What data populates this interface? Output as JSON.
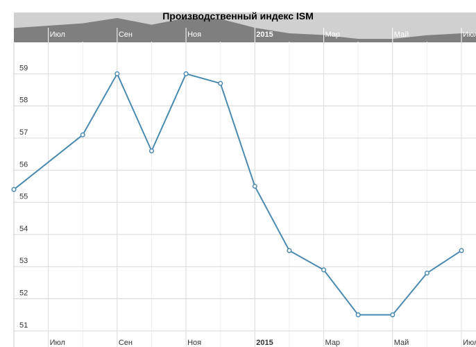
{
  "chart_data": {
    "type": "line",
    "title": "Производственный индекс ISM",
    "x": [
      "2014-06",
      "2014-08",
      "2014-09",
      "2014-10",
      "2014-11",
      "2014-12",
      "2015-01",
      "2015-02",
      "2015-03",
      "2015-04",
      "2015-05",
      "2015-06",
      "2015-07"
    ],
    "series": [
      {
        "color": "#4a8ab0",
        "values": [
          55.4,
          57.1,
          59.0,
          56.6,
          59.0,
          58.7,
          55.5,
          53.5,
          52.9,
          51.5,
          51.5,
          52.8,
          53.5
        ]
      }
    ],
    "xlim": [
      "2014-06",
      "2015-07"
    ],
    "xticks": [
      {
        "value": "2014-07",
        "label": "Июл"
      },
      {
        "value": "2014-09",
        "label": "Сен"
      },
      {
        "value": "2014-11",
        "label": "Ноя"
      },
      {
        "value": "2015-01",
        "label": "2015"
      },
      {
        "value": "2015-03",
        "label": "Мар"
      },
      {
        "value": "2015-05",
        "label": "Май"
      },
      {
        "value": "2015-07",
        "label": "Июл"
      }
    ],
    "ylim": [
      50.5,
      60
    ],
    "yticks": [
      51,
      52,
      53,
      54,
      55,
      56,
      57,
      58,
      59
    ],
    "grid": true
  }
}
